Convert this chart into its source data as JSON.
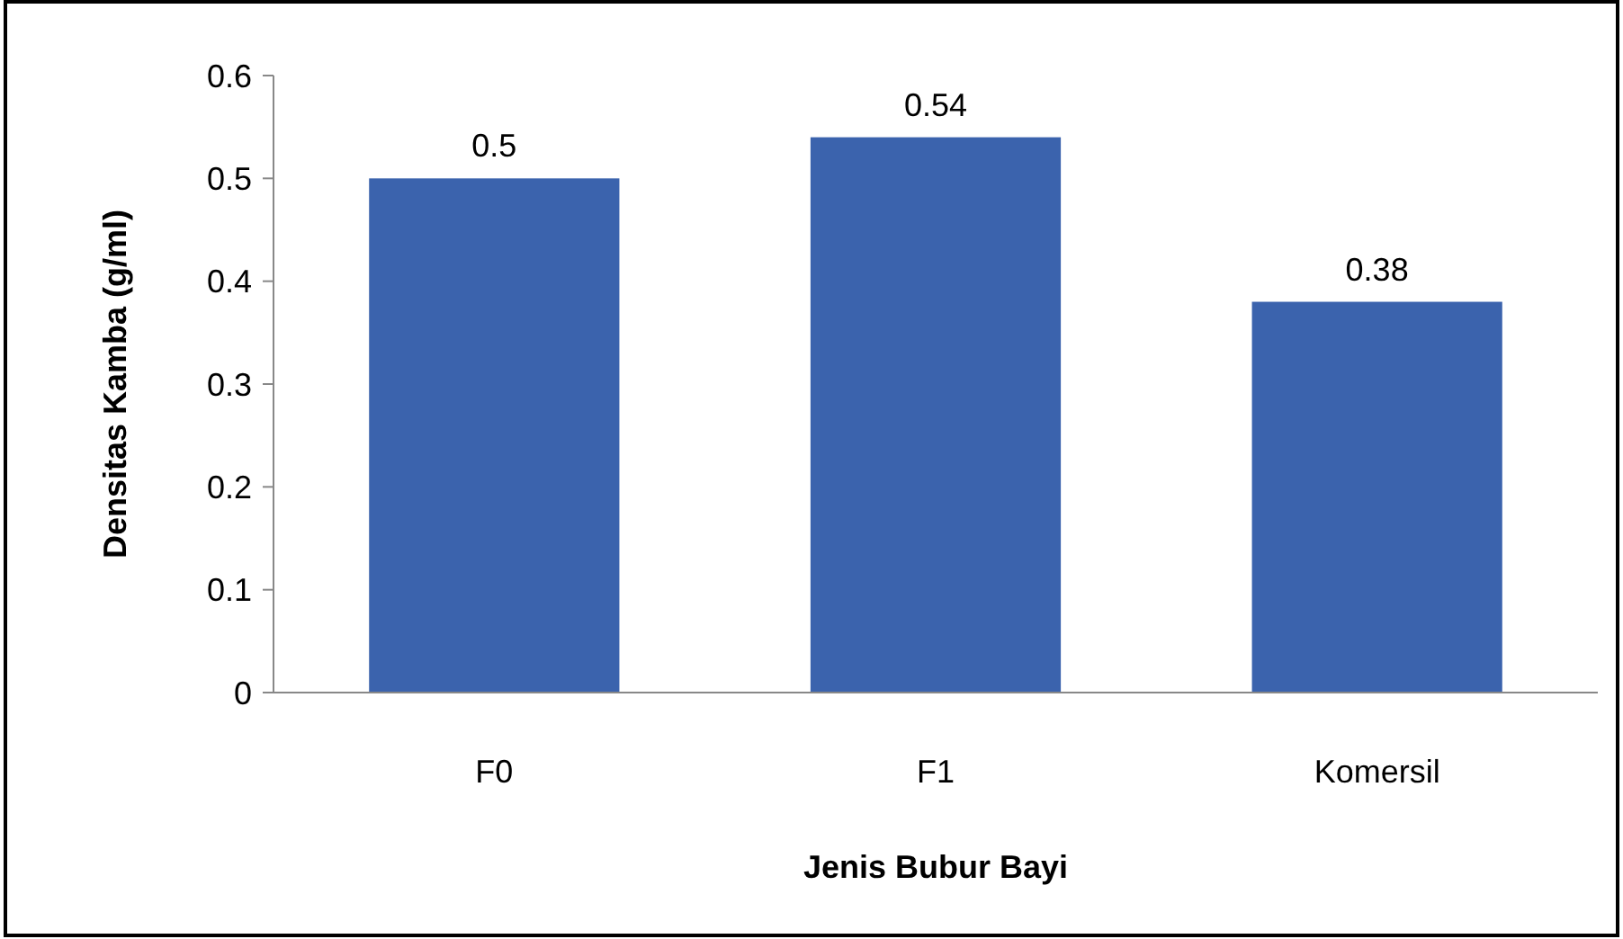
{
  "chart_data": {
    "type": "bar",
    "xlabel": "Jenis Bubur Bayi",
    "ylabel": "Densitas Kamba (g/ml)",
    "categories": [
      "F0",
      "F1",
      "Komersil"
    ],
    "values": [
      0.5,
      0.54,
      0.38
    ],
    "color": "#3b63ad",
    "ylim": [
      0,
      0.6
    ],
    "yticks": [
      {
        "value": 0,
        "label": "0"
      },
      0.1,
      0.2,
      0.3,
      0.4,
      0.5,
      0.6
    ],
    "data_labels": true,
    "grid": false
  }
}
